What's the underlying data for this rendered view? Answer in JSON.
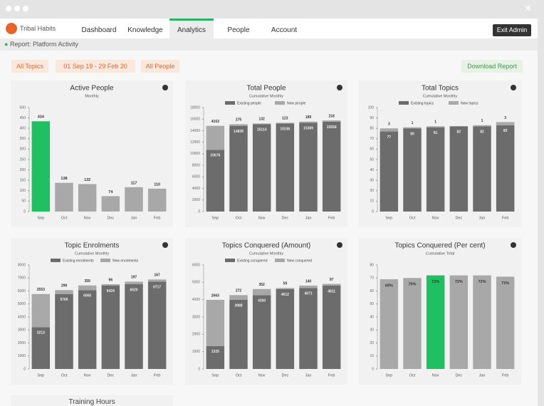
{
  "nav": {
    "logo": "Tribal Habits",
    "tabs": [
      "Dashboard",
      "Knowledge",
      "Analytics",
      "People",
      "Account"
    ],
    "exit": "Exit Admin"
  },
  "breadcrumb": "Report: Platform Activity",
  "filters": [
    "All Topics",
    "01 Sep 19 - 29 Feb 20",
    "All People"
  ],
  "download": "Download Report",
  "partial_title": "Training Hours",
  "chart_data": [
    {
      "type": "bar",
      "title": "Active People",
      "subtitle": "Monthly",
      "categories": [
        "Sep",
        "Oct",
        "Nov",
        "Dec",
        "Jan",
        "Feb"
      ],
      "values": [
        434,
        138,
        132,
        74,
        117,
        110
      ],
      "colors": [
        "#1fbf62",
        "#a8a8a8",
        "#a8a8a8",
        "#a8a8a8",
        "#a8a8a8",
        "#a8a8a8"
      ],
      "label_position": "above",
      "ylim": [
        0,
        500
      ],
      "yticks": [
        0,
        50,
        100,
        150,
        200,
        250,
        300,
        350,
        400,
        450,
        500
      ]
    },
    {
      "type": "stacked_bar",
      "title": "Total People",
      "subtitle": "Cumulative Monthly",
      "categories": [
        "Sep",
        "Oct",
        "Nov",
        "Dec",
        "Jan",
        "Feb"
      ],
      "series": [
        {
          "name": "Existing people",
          "color": "#6c6c6c",
          "values": [
            10676,
            14839,
            15114,
            15246,
            15369,
            15558
          ]
        },
        {
          "name": "New people",
          "color": "#a8a8a8",
          "values": [
            4163,
            275,
            132,
            123,
            189,
            218
          ]
        }
      ],
      "ylim": [
        0,
        18000
      ],
      "yticks": [
        0,
        2000,
        4000,
        6000,
        8000,
        10000,
        12000,
        14000,
        16000,
        18000
      ]
    },
    {
      "type": "stacked_bar",
      "title": "Total Topics",
      "subtitle": "Cumulative Monthly",
      "categories": [
        "Sep",
        "Oct",
        "Nov",
        "Dec",
        "Jan",
        "Feb"
      ],
      "series": [
        {
          "name": "Existing topics",
          "color": "#6c6c6c",
          "values": [
            77,
            80,
            81,
            82,
            82,
            83
          ]
        },
        {
          "name": "New topics",
          "color": "#a8a8a8",
          "values": [
            3,
            1,
            1,
            null,
            1,
            3
          ]
        }
      ],
      "ylim": [
        0,
        100
      ],
      "yticks": [
        0,
        10,
        20,
        30,
        40,
        50,
        60,
        70,
        80,
        90,
        100
      ]
    },
    {
      "type": "stacked_bar",
      "title": "Topic Enrolments",
      "subtitle": "Cumulative Monthly",
      "categories": [
        "Sep",
        "Oct",
        "Nov",
        "Dec",
        "Jan",
        "Feb"
      ],
      "series": [
        {
          "name": "Existing enrolments",
          "color": "#6c6c6c",
          "values": [
            3213,
            5766,
            6065,
            6424,
            6520,
            6717
          ]
        },
        {
          "name": "New enrolments",
          "color": "#a8a8a8",
          "values": [
            2553,
            299,
            359,
            96,
            197,
            167
          ]
        }
      ],
      "ylim": [
        0,
        8000
      ],
      "yticks": [
        0,
        1000,
        2000,
        3000,
        4000,
        5000,
        6000,
        7000,
        8000
      ]
    },
    {
      "type": "stacked_bar",
      "title": "Topics Conquered (Amount)",
      "subtitle": "Cumulative Monthly",
      "categories": [
        "Sep",
        "Oct",
        "Nov",
        "Dec",
        "Jan",
        "Feb"
      ],
      "series": [
        {
          "name": "Existing conquered",
          "color": "#6c6c6c",
          "values": [
            1325,
            3988,
            4260,
            4612,
            4671,
            4811
          ]
        },
        {
          "name": "New conquered",
          "color": "#a8a8a8",
          "values": [
            2663,
            272,
            352,
            59,
            140,
            97
          ]
        }
      ],
      "ylim": [
        0,
        6000
      ],
      "yticks": [
        0,
        1000,
        2000,
        3000,
        4000,
        5000,
        6000
      ]
    },
    {
      "type": "bar",
      "title": "Topics Conquered (Per cent)",
      "subtitle": "Cumulative Total",
      "categories": [
        "Sep",
        "Oct",
        "Nov",
        "Dec",
        "Jan",
        "Feb"
      ],
      "values": [
        69,
        70,
        72,
        72,
        72,
        71
      ],
      "value_labels": [
        "69%",
        "70%",
        "72%",
        "72%",
        "72%",
        "71%"
      ],
      "colors": [
        "#a8a8a8",
        "#a8a8a8",
        "#1fbf62",
        "#a8a8a8",
        "#a8a8a8",
        "#a8a8a8"
      ],
      "label_position": "inside",
      "ylim": [
        0,
        80
      ],
      "yticks": [
        0,
        10,
        20,
        30,
        40,
        50,
        60,
        70,
        80
      ]
    }
  ]
}
